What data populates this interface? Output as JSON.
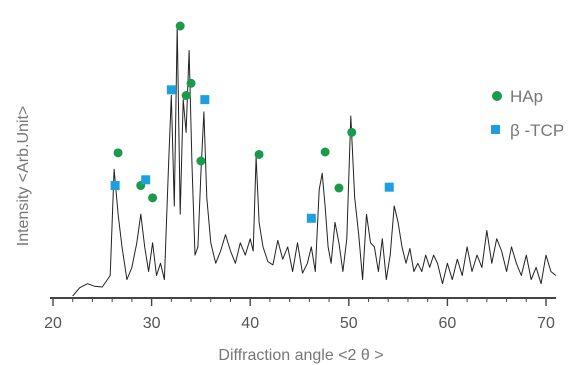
{
  "chart_data": {
    "type": "line",
    "title": "",
    "xlabel": "Diffraction angle <2 θ >",
    "ylabel": "Intensity <Arb.Unit>",
    "xlim": [
      20,
      71
    ],
    "ticks": [
      "20",
      "30",
      "40",
      "50",
      "60",
      "70"
    ],
    "grid": false,
    "legend_position": "top-right",
    "colors": {
      "line": "#222222",
      "HAp": "#1a9a4a",
      "beta_TCP": "#1d9fe0",
      "axis": "#444444",
      "text": "#777777"
    },
    "legend": [
      {
        "label": "HAp",
        "marker": "circle",
        "color": "#1a9a4a"
      },
      {
        "label": "β -TCP",
        "marker": "square",
        "color": "#1d9fe0"
      }
    ],
    "series": [
      {
        "name": "",
        "x": [
          22.0,
          22.7,
          23.5,
          24.2,
          25.0,
          25.8,
          26.2,
          26.6,
          27.0,
          27.5,
          28.0,
          28.5,
          28.9,
          29.3,
          29.7,
          30.1,
          30.5,
          30.9,
          31.3,
          31.7,
          32.0,
          32.3,
          32.6,
          32.9,
          33.2,
          33.5,
          33.8,
          34.1,
          34.4,
          34.7,
          35.0,
          35.3,
          35.6,
          36.0,
          36.5,
          37.0,
          37.5,
          38.0,
          38.5,
          39.0,
          39.5,
          40.0,
          40.3,
          40.6,
          40.9,
          41.3,
          41.8,
          42.3,
          42.8,
          43.3,
          43.8,
          44.3,
          44.8,
          45.3,
          45.8,
          46.2,
          46.6,
          47.0,
          47.3,
          47.6,
          47.9,
          48.2,
          48.6,
          49.0,
          49.4,
          49.8,
          50.2,
          50.6,
          51.0,
          51.4,
          51.8,
          52.2,
          52.6,
          53.0,
          53.4,
          53.8,
          54.2,
          54.6,
          55.0,
          55.4,
          55.8,
          56.2,
          56.6,
          57.0,
          57.4,
          57.8,
          58.2,
          58.6,
          59.0,
          59.5,
          60.0,
          60.5,
          61.0,
          61.5,
          62.0,
          62.5,
          63.0,
          63.5,
          64.0,
          64.5,
          65.0,
          65.5,
          66.0,
          66.5,
          67.0,
          67.5,
          68.0,
          68.5,
          69.0,
          69.5,
          70.0,
          70.5,
          71.0
        ],
        "y": [
          0,
          10,
          15,
          12,
          11,
          25,
          155,
          100,
          60,
          20,
          35,
          65,
          100,
          60,
          30,
          65,
          25,
          40,
          20,
          155,
          245,
          110,
          330,
          100,
          240,
          200,
          300,
          160,
          50,
          60,
          150,
          225,
          120,
          65,
          40,
          55,
          75,
          55,
          40,
          65,
          50,
          70,
          55,
          170,
          90,
          60,
          42,
          38,
          68,
          45,
          60,
          30,
          65,
          28,
          40,
          60,
          30,
          130,
          150,
          110,
          60,
          40,
          90,
          65,
          30,
          70,
          220,
          120,
          75,
          20,
          100,
          65,
          60,
          30,
          70,
          20,
          50,
          110,
          90,
          60,
          40,
          58,
          30,
          40,
          30,
          50,
          35,
          50,
          40,
          15,
          40,
          20,
          45,
          25,
          60,
          30,
          50,
          35,
          80,
          40,
          70,
          55,
          30,
          60,
          40,
          25,
          50,
          20,
          35,
          15,
          50,
          30,
          25
        ]
      }
    ],
    "markers": {
      "HAp": [
        {
          "x": 26.6,
          "y": 175
        },
        {
          "x": 28.9,
          "y": 135
        },
        {
          "x": 30.1,
          "y": 120
        },
        {
          "x": 32.9,
          "y": 330
        },
        {
          "x": 33.5,
          "y": 245
        },
        {
          "x": 34.0,
          "y": 260
        },
        {
          "x": 35.0,
          "y": 165
        },
        {
          "x": 40.9,
          "y": 173
        },
        {
          "x": 47.6,
          "y": 176
        },
        {
          "x": 49.0,
          "y": 132
        },
        {
          "x": 50.3,
          "y": 200
        }
      ],
      "beta_TCP": [
        {
          "x": 26.3,
          "y": 135
        },
        {
          "x": 29.4,
          "y": 142
        },
        {
          "x": 32.0,
          "y": 252
        },
        {
          "x": 35.4,
          "y": 240
        },
        {
          "x": 46.2,
          "y": 95
        },
        {
          "x": 54.1,
          "y": 133
        }
      ]
    }
  }
}
